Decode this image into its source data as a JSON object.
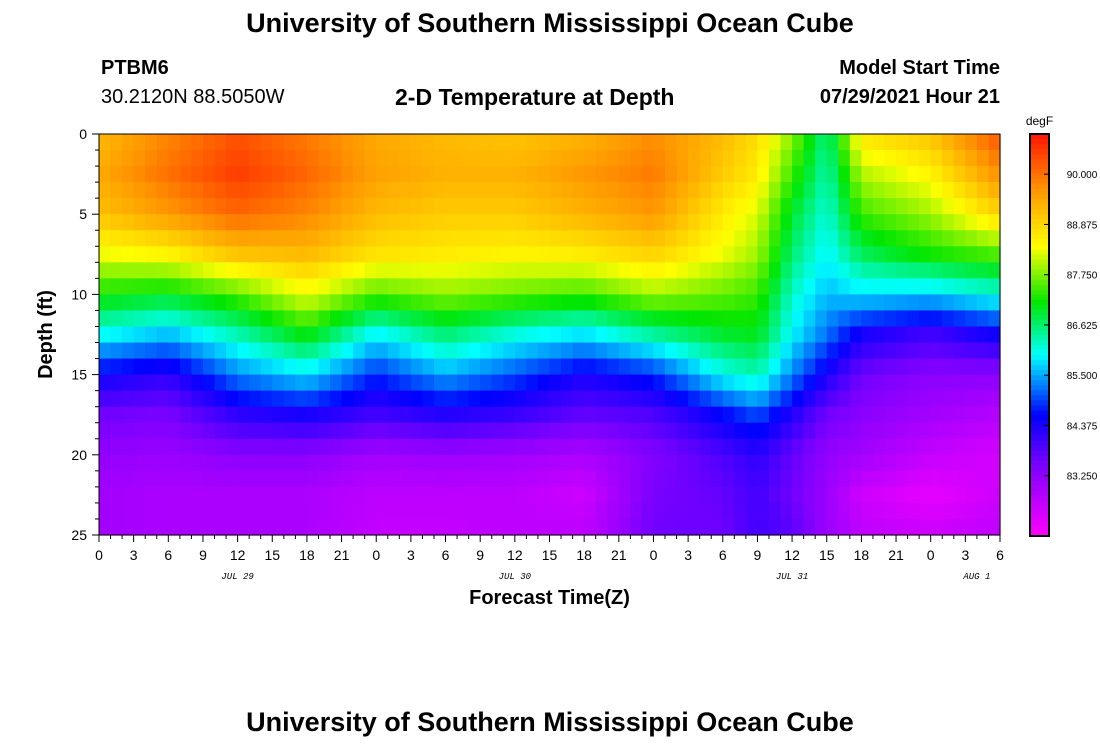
{
  "header": {
    "title": "University of Southern Mississippi Ocean Cube",
    "station_id": "PTBM6",
    "station_coords": "30.2120N  88.5050W",
    "subtitle": "2-D Temperature at Depth",
    "model_label": "Model Start Time",
    "model_time": "07/29/2021 Hour 21"
  },
  "footer": {
    "title": "University of Southern Mississippi Ocean Cube"
  },
  "chart_data": {
    "type": "heatmap",
    "title": "2-D Temperature at Depth",
    "xlabel": "Forecast Time(Z)",
    "ylabel": "Depth (ft)",
    "x_unit": "hours since JUL 29 00Z",
    "xlim": [
      0,
      78
    ],
    "ylim": [
      0,
      25
    ],
    "x_ticks": [
      0,
      3,
      6,
      9,
      12,
      15,
      18,
      21,
      24,
      27,
      30,
      33,
      36,
      39,
      42,
      45,
      48,
      51,
      54,
      57,
      60,
      63,
      66,
      69,
      72,
      75,
      78
    ],
    "x_tick_labels": [
      "0",
      "3",
      "6",
      "9",
      "12",
      "15",
      "18",
      "21",
      "0",
      "3",
      "6",
      "9",
      "12",
      "15",
      "18",
      "21",
      "0",
      "3",
      "6",
      "9",
      "12",
      "15",
      "18",
      "21",
      "0",
      "3",
      "6"
    ],
    "y_ticks": [
      0,
      5,
      10,
      15,
      20,
      25
    ],
    "y_tick_labels": [
      "0",
      "5",
      "10",
      "15",
      "20",
      "25"
    ],
    "date_labels": [
      {
        "hour": 12,
        "label": "JUL 29"
      },
      {
        "hour": 36,
        "label": "JUL 30"
      },
      {
        "hour": 60,
        "label": "JUL 31"
      },
      {
        "hour": 76,
        "label": "AUG 1"
      }
    ],
    "colorbar": {
      "unit": "degF",
      "min": 81.9,
      "max": 90.9,
      "ticks": [
        90.0,
        88.875,
        87.75,
        86.625,
        85.5,
        84.375,
        83.25
      ],
      "tick_labels": [
        "90.000",
        "88.875",
        "87.750",
        "86.625",
        "85.500",
        "84.375",
        "83.250"
      ]
    },
    "grid_hours": [
      0,
      6,
      12,
      18,
      24,
      30,
      36,
      42,
      48,
      54,
      57,
      60,
      63,
      66,
      72,
      78
    ],
    "grid_depths": [
      0,
      2.5,
      5,
      7.5,
      10,
      12.5,
      15,
      17.5,
      20,
      22.5,
      25
    ],
    "values": [
      [
        89.2,
        89.4,
        89.1,
        88.3,
        87.2,
        86.0,
        84.5,
        83.6,
        83.2,
        83.0,
        83.0
      ],
      [
        89.8,
        90.0,
        89.6,
        88.5,
        87.0,
        85.6,
        84.2,
        83.5,
        83.1,
        82.9,
        82.9
      ],
      [
        90.3,
        90.5,
        90.1,
        89.1,
        87.5,
        86.3,
        85.3,
        84.2,
        83.3,
        82.9,
        82.9
      ],
      [
        89.9,
        90.1,
        89.8,
        89.2,
        88.3,
        87.1,
        85.8,
        84.4,
        83.3,
        82.9,
        82.9
      ],
      [
        89.4,
        89.5,
        89.2,
        88.7,
        87.5,
        85.9,
        84.8,
        84.0,
        83.0,
        82.7,
        82.6
      ],
      [
        89.2,
        89.3,
        89.0,
        88.6,
        87.8,
        86.6,
        85.5,
        84.3,
        83.1,
        82.7,
        82.6
      ],
      [
        89.1,
        89.3,
        89.0,
        88.5,
        87.6,
        86.1,
        85.0,
        84.1,
        83.0,
        82.7,
        82.7
      ],
      [
        89.3,
        89.6,
        89.3,
        88.6,
        87.4,
        85.8,
        84.4,
        83.7,
        82.9,
        82.5,
        82.7
      ],
      [
        89.7,
        89.9,
        89.6,
        88.9,
        87.9,
        86.4,
        84.8,
        83.9,
        83.4,
        83.5,
        83.6
      ],
      [
        89.2,
        89.0,
        88.6,
        88.3,
        87.6,
        86.9,
        86.0,
        84.6,
        83.9,
        83.7,
        83.6
      ],
      [
        88.8,
        88.6,
        88.2,
        87.9,
        87.4,
        87.0,
        86.3,
        85.0,
        84.2,
        84.0,
        84.0
      ],
      [
        87.8,
        87.4,
        86.9,
        86.6,
        86.2,
        85.9,
        85.3,
        84.3,
        83.7,
        83.6,
        83.8
      ],
      [
        86.5,
        86.3,
        86.1,
        85.9,
        85.6,
        85.2,
        84.4,
        83.6,
        83.2,
        83.1,
        83.1
      ],
      [
        88.7,
        88.0,
        87.4,
        86.7,
        85.8,
        84.4,
        83.6,
        83.3,
        83.0,
        82.5,
        82.7
      ],
      [
        89.1,
        88.5,
        87.9,
        87.2,
        85.7,
        84.0,
        83.3,
        83.0,
        82.6,
        82.2,
        82.5
      ],
      [
        90.3,
        89.7,
        88.9,
        87.5,
        86.1,
        84.5,
        83.3,
        82.8,
        82.4,
        82.5,
        82.7
      ]
    ]
  }
}
